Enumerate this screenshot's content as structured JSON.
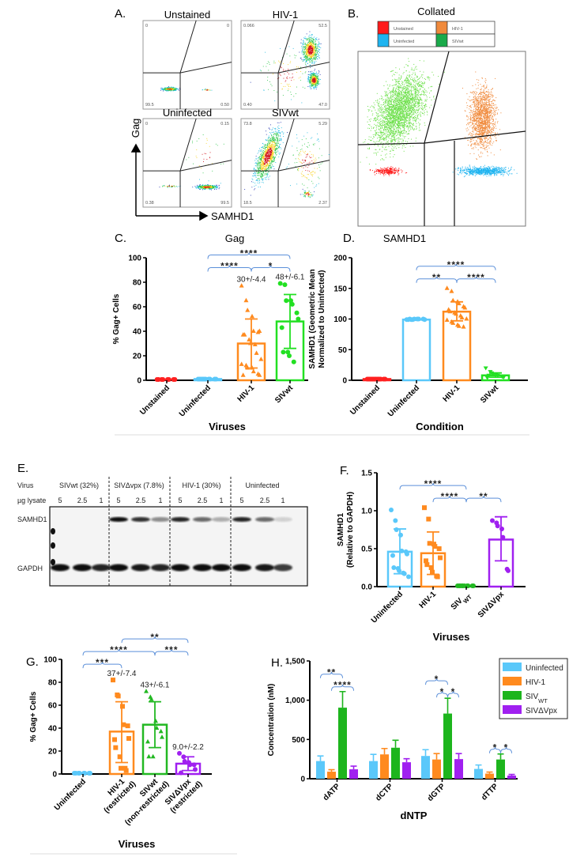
{
  "panelA": {
    "label": "A.",
    "x_axis": "SAMHD1",
    "y_axis": "Gag",
    "plots": [
      {
        "title": "Unstained",
        "quadrants": {
          "ul": "0",
          "ur": "0",
          "ll": "99.5",
          "lr": "0.50"
        }
      },
      {
        "title": "HIV-1",
        "quadrants": {
          "ul": "0.066",
          "ur": "52.5",
          "ll": "0.40",
          "lr": "47.0"
        }
      },
      {
        "title": "Uninfected",
        "quadrants": {
          "ul": "0",
          "ur": "0.15",
          "ll": "0.38",
          "lr": "99.5"
        }
      },
      {
        "title": "SIVwt",
        "quadrants": {
          "ul": "73.8",
          "ur": "5.29",
          "ll": "18.5",
          "lr": "2.37"
        }
      }
    ]
  },
  "panelB": {
    "label": "B.",
    "title": "Collated",
    "legend": [
      {
        "name": "Unstained",
        "color": "#ff1a1a"
      },
      {
        "name": "HIV-1",
        "color": "#f08a3c"
      },
      {
        "name": "Uninfected",
        "color": "#1eb4f0"
      },
      {
        "name": "SIVwt",
        "color": "#1aaa4a"
      }
    ]
  },
  "panelE": {
    "label": "E.",
    "virus_label": "Virus",
    "lysate_label": "µg lysate",
    "groups": [
      "SIVwt (32%)",
      "SIVΔvpx (7.8%)",
      "HIV-1 (30%)",
      "Uninfected"
    ],
    "lanes": [
      "5",
      "2.5",
      "1",
      "5",
      "2.5",
      "1",
      "5",
      "2.5",
      "1",
      "5",
      "2.5",
      "1"
    ],
    "bands": [
      {
        "name": "SAMHD1",
        "intensity": [
          0,
          0,
          0,
          1,
          0.85,
          0.45,
          0.9,
          0.6,
          0.3,
          0.9,
          0.6,
          0.15
        ]
      },
      {
        "name": "GAPDH",
        "intensity": [
          1,
          1,
          0.9,
          1,
          0.95,
          0.9,
          1,
          1,
          1,
          1,
          0.95,
          0.8
        ]
      }
    ]
  },
  "chart_data": [
    {
      "panel": "C.",
      "type": "bar",
      "title": "Gag",
      "xlabel": "Viruses",
      "ylabel": [
        "% Gag+ Cells"
      ],
      "ylim": [
        0,
        100
      ],
      "yticks": [
        0,
        20,
        40,
        60,
        80,
        100
      ],
      "ytick_labels": [
        "0",
        "20",
        "40",
        "60",
        "80",
        "100"
      ],
      "categories": [
        "Unstained",
        "Uninfected",
        "HIV-1",
        "SIVwt"
      ],
      "colors": [
        "#ff2020",
        "#5ac8fa",
        "#ff8a1e",
        "#22e022"
      ],
      "markers": [
        "circle",
        "circle",
        "triangle",
        "circle"
      ],
      "means": [
        0,
        1,
        30,
        48
      ],
      "error": [
        null,
        null,
        [
          10,
          50
        ],
        [
          26,
          70
        ]
      ],
      "points": [
        [
          0,
          0,
          0,
          0,
          0,
          0,
          0,
          0
        ],
        [
          1,
          1,
          1,
          1,
          1,
          1,
          1,
          1,
          1,
          1
        ],
        [
          77,
          65,
          57,
          52,
          40,
          39,
          40,
          37,
          37,
          33,
          30,
          29,
          22,
          17,
          13,
          12,
          10,
          10,
          7,
          5,
          4,
          4
        ],
        [
          79,
          78,
          65,
          65,
          62,
          55,
          50,
          43,
          23,
          23,
          20,
          15
        ]
      ],
      "annotations": [
        "",
        "",
        "30+/-4.4",
        "48+/-6.1"
      ],
      "significance": [
        {
          "from": 1,
          "to": 2,
          "label": "****",
          "level": 0
        },
        {
          "from": 2,
          "to": 3,
          "label": "*",
          "level": 0
        },
        {
          "from": 1,
          "to": 3,
          "label": "****",
          "level": 1
        }
      ]
    },
    {
      "panel": "D.",
      "type": "bar",
      "title": "SAMHD1",
      "xlabel": "Condition",
      "ylabel": [
        "SAMHD1 (Geometric Mean",
        "Normalized to Uninfected)"
      ],
      "ylim": [
        0,
        200
      ],
      "yticks": [
        0,
        50,
        100,
        150,
        200
      ],
      "ytick_labels": [
        "0",
        "50",
        "100",
        "150",
        "200"
      ],
      "categories": [
        "Unstained",
        "Uninfected",
        "HIV-1",
        "SIVwt"
      ],
      "colors": [
        "#ff2020",
        "#5ac8fa",
        "#ff8a1e",
        "#22e022"
      ],
      "markers": [
        "circle",
        "circle",
        "triangle",
        "triangle-down"
      ],
      "means": [
        2,
        99,
        112,
        8
      ],
      "error": [
        null,
        null,
        [
          97,
          128
        ],
        [
          5,
          12
        ]
      ],
      "points": [
        [
          2,
          2,
          2,
          2,
          2,
          2,
          2,
          2,
          2,
          2,
          2,
          2
        ],
        [
          99,
          99,
          99,
          100,
          100,
          100,
          99,
          99,
          100,
          100
        ],
        [
          150,
          145,
          130,
          128,
          125,
          120,
          118,
          115,
          112,
          110,
          108,
          105,
          102,
          100,
          98,
          95,
          93,
          90,
          88,
          87
        ],
        [
          20,
          14,
          12,
          10,
          8,
          6,
          5,
          4,
          8,
          10
        ]
      ],
      "annotations": [
        "",
        "",
        "",
        ""
      ],
      "significance": [
        {
          "from": 1,
          "to": 2,
          "label": "**",
          "level": 0
        },
        {
          "from": 2,
          "to": 3,
          "label": "****",
          "level": 0
        },
        {
          "from": 1,
          "to": 3,
          "label": "****",
          "level": 1
        }
      ]
    },
    {
      "panel": "F.",
      "type": "bar",
      "title": "",
      "xlabel": "Viruses",
      "ylabel": [
        "SAMHD1",
        "(Relative to GAPDH)"
      ],
      "ylim": [
        0,
        1.5
      ],
      "yticks": [
        0,
        0.5,
        1.0,
        1.5
      ],
      "ytick_labels": [
        "0.0",
        "0.5",
        "1.0",
        "1.5"
      ],
      "categories": [
        "Uninfected",
        "HIV-1",
        "SIVWT",
        "SIVΔVpx"
      ],
      "colors": [
        "#5ac8fa",
        "#ff8a1e",
        "#22b822",
        "#a020f0"
      ],
      "markers": [
        "circle",
        "square",
        "circle",
        "circle"
      ],
      "means": [
        0.46,
        0.44,
        0.0,
        0.62
      ],
      "error": [
        [
          0.17,
          0.76
        ],
        [
          0.16,
          0.72
        ],
        null,
        [
          0.34,
          0.92
        ]
      ],
      "points": [
        [
          1.01,
          0.87,
          0.75,
          0.68,
          0.47,
          0.46,
          0.43,
          0.41,
          0.25,
          0.24,
          0.21,
          0.18,
          0.17,
          0.13
        ],
        [
          1.04,
          0.89,
          0.57,
          0.56,
          0.53,
          0.5,
          0.38,
          0.34,
          0.29,
          0.25,
          0.19,
          0.14,
          0.13
        ],
        [
          0,
          0,
          0,
          0,
          0,
          0,
          0,
          0,
          0,
          0
        ],
        [
          0.87,
          0.84,
          0.8,
          0.76,
          0.65,
          0.23,
          0.21
        ]
      ],
      "annotations": [
        "",
        "",
        "",
        ""
      ],
      "significance": [
        {
          "from": 1,
          "to": 2,
          "label": "****",
          "level": 0
        },
        {
          "from": 2,
          "to": 3,
          "label": "**",
          "level": 0
        },
        {
          "from": 0,
          "to": 2,
          "label": "****",
          "level": 1
        }
      ]
    },
    {
      "panel": "G.",
      "type": "bar",
      "title": "",
      "xlabel": "Viruses",
      "ylabel": [
        "% Gag+ Cells"
      ],
      "ylim": [
        0,
        100
      ],
      "yticks": [
        0,
        20,
        40,
        60,
        80,
        100
      ],
      "ytick_labels": [
        "0",
        "20",
        "40",
        "60",
        "80",
        "100"
      ],
      "categories": [
        "Uninfected",
        "HIV-1\n(restricted)",
        "SIVwt\n(non-restricted)",
        "SIVΔVpx\n(restricted)"
      ],
      "colors": [
        "#5ac8fa",
        "#ff8a1e",
        "#22b822",
        "#a020f0"
      ],
      "markers": [
        "circle",
        "square",
        "triangle",
        "circle"
      ],
      "means": [
        0,
        37,
        43,
        9
      ],
      "error": [
        null,
        [
          10,
          63
        ],
        [
          23,
          63
        ],
        [
          3,
          15
        ]
      ],
      "points": [
        [
          0,
          0,
          0,
          0,
          0,
          0,
          0,
          0
        ],
        [
          82,
          69,
          68,
          59,
          43,
          42,
          31,
          30,
          23,
          15,
          5,
          5,
          3
        ],
        [
          72,
          67,
          65,
          46,
          40,
          37,
          32,
          28,
          15,
          15
        ],
        [
          18,
          15,
          11,
          10,
          8,
          8,
          4,
          1
        ]
      ],
      "annotations": [
        "",
        "37+/-7.4",
        "43+/-6.1",
        "9.0+/-2.2"
      ],
      "significance": [
        {
          "from": 0,
          "to": 1,
          "label": "***",
          "level": 0
        },
        {
          "from": 0,
          "to": 2,
          "label": "****",
          "level": 1
        },
        {
          "from": 2,
          "to": 3,
          "label": "***",
          "level": 1
        },
        {
          "from": 1,
          "to": 3,
          "label": "**",
          "level": 2
        }
      ]
    },
    {
      "panel": "H.",
      "type": "bar",
      "title": "",
      "xlabel": "dNTP",
      "ylabel": [
        "Concentration (nM)"
      ],
      "ylim": [
        0,
        1500
      ],
      "yticks": [
        0,
        500,
        1000,
        1500
      ],
      "ytick_labels": [
        "0",
        "500",
        "1,000",
        "1,500"
      ],
      "categories": [
        "dATP",
        "dCTP",
        "dGTP",
        "dTTP"
      ],
      "legend_placement": "top-right",
      "series": [
        {
          "name": "Uninfected",
          "color": "#5ac8fa",
          "values": [
            225,
            225,
            290,
            125
          ],
          "error_upper": [
            290,
            310,
            370,
            175
          ]
        },
        {
          "name": "HIV-1",
          "color": "#ff8a1e",
          "values": [
            90,
            310,
            245,
            65
          ],
          "error_upper": [
            115,
            385,
            320,
            85
          ]
        },
        {
          "name": "SIVWT",
          "color": "#1db51d",
          "values": [
            905,
            395,
            830,
            245
          ],
          "error_upper": [
            1110,
            490,
            1025,
            315
          ]
        },
        {
          "name": "SIVΔVpx",
          "color": "#a020f0",
          "values": [
            120,
            210,
            250,
            40
          ],
          "error_upper": [
            160,
            255,
            320,
            55
          ]
        }
      ],
      "significance": [
        {
          "group": 0,
          "from": 0,
          "to": 2,
          "label": "**",
          "level": 1
        },
        {
          "group": 0,
          "from": 1,
          "to": 3,
          "label": "****",
          "level": 0
        },
        {
          "group": 2,
          "from": 0,
          "to": 2,
          "label": "*",
          "level": 1
        },
        {
          "group": 2,
          "from": 1,
          "to": 2,
          "label": "*",
          "level": 0
        },
        {
          "group": 2,
          "from": 2,
          "to": 3,
          "label": "*",
          "level": 0
        },
        {
          "group": 3,
          "from": 1,
          "to": 2,
          "label": "*",
          "level": 0
        },
        {
          "group": 3,
          "from": 2,
          "to": 3,
          "label": "*",
          "level": 0
        }
      ]
    }
  ]
}
